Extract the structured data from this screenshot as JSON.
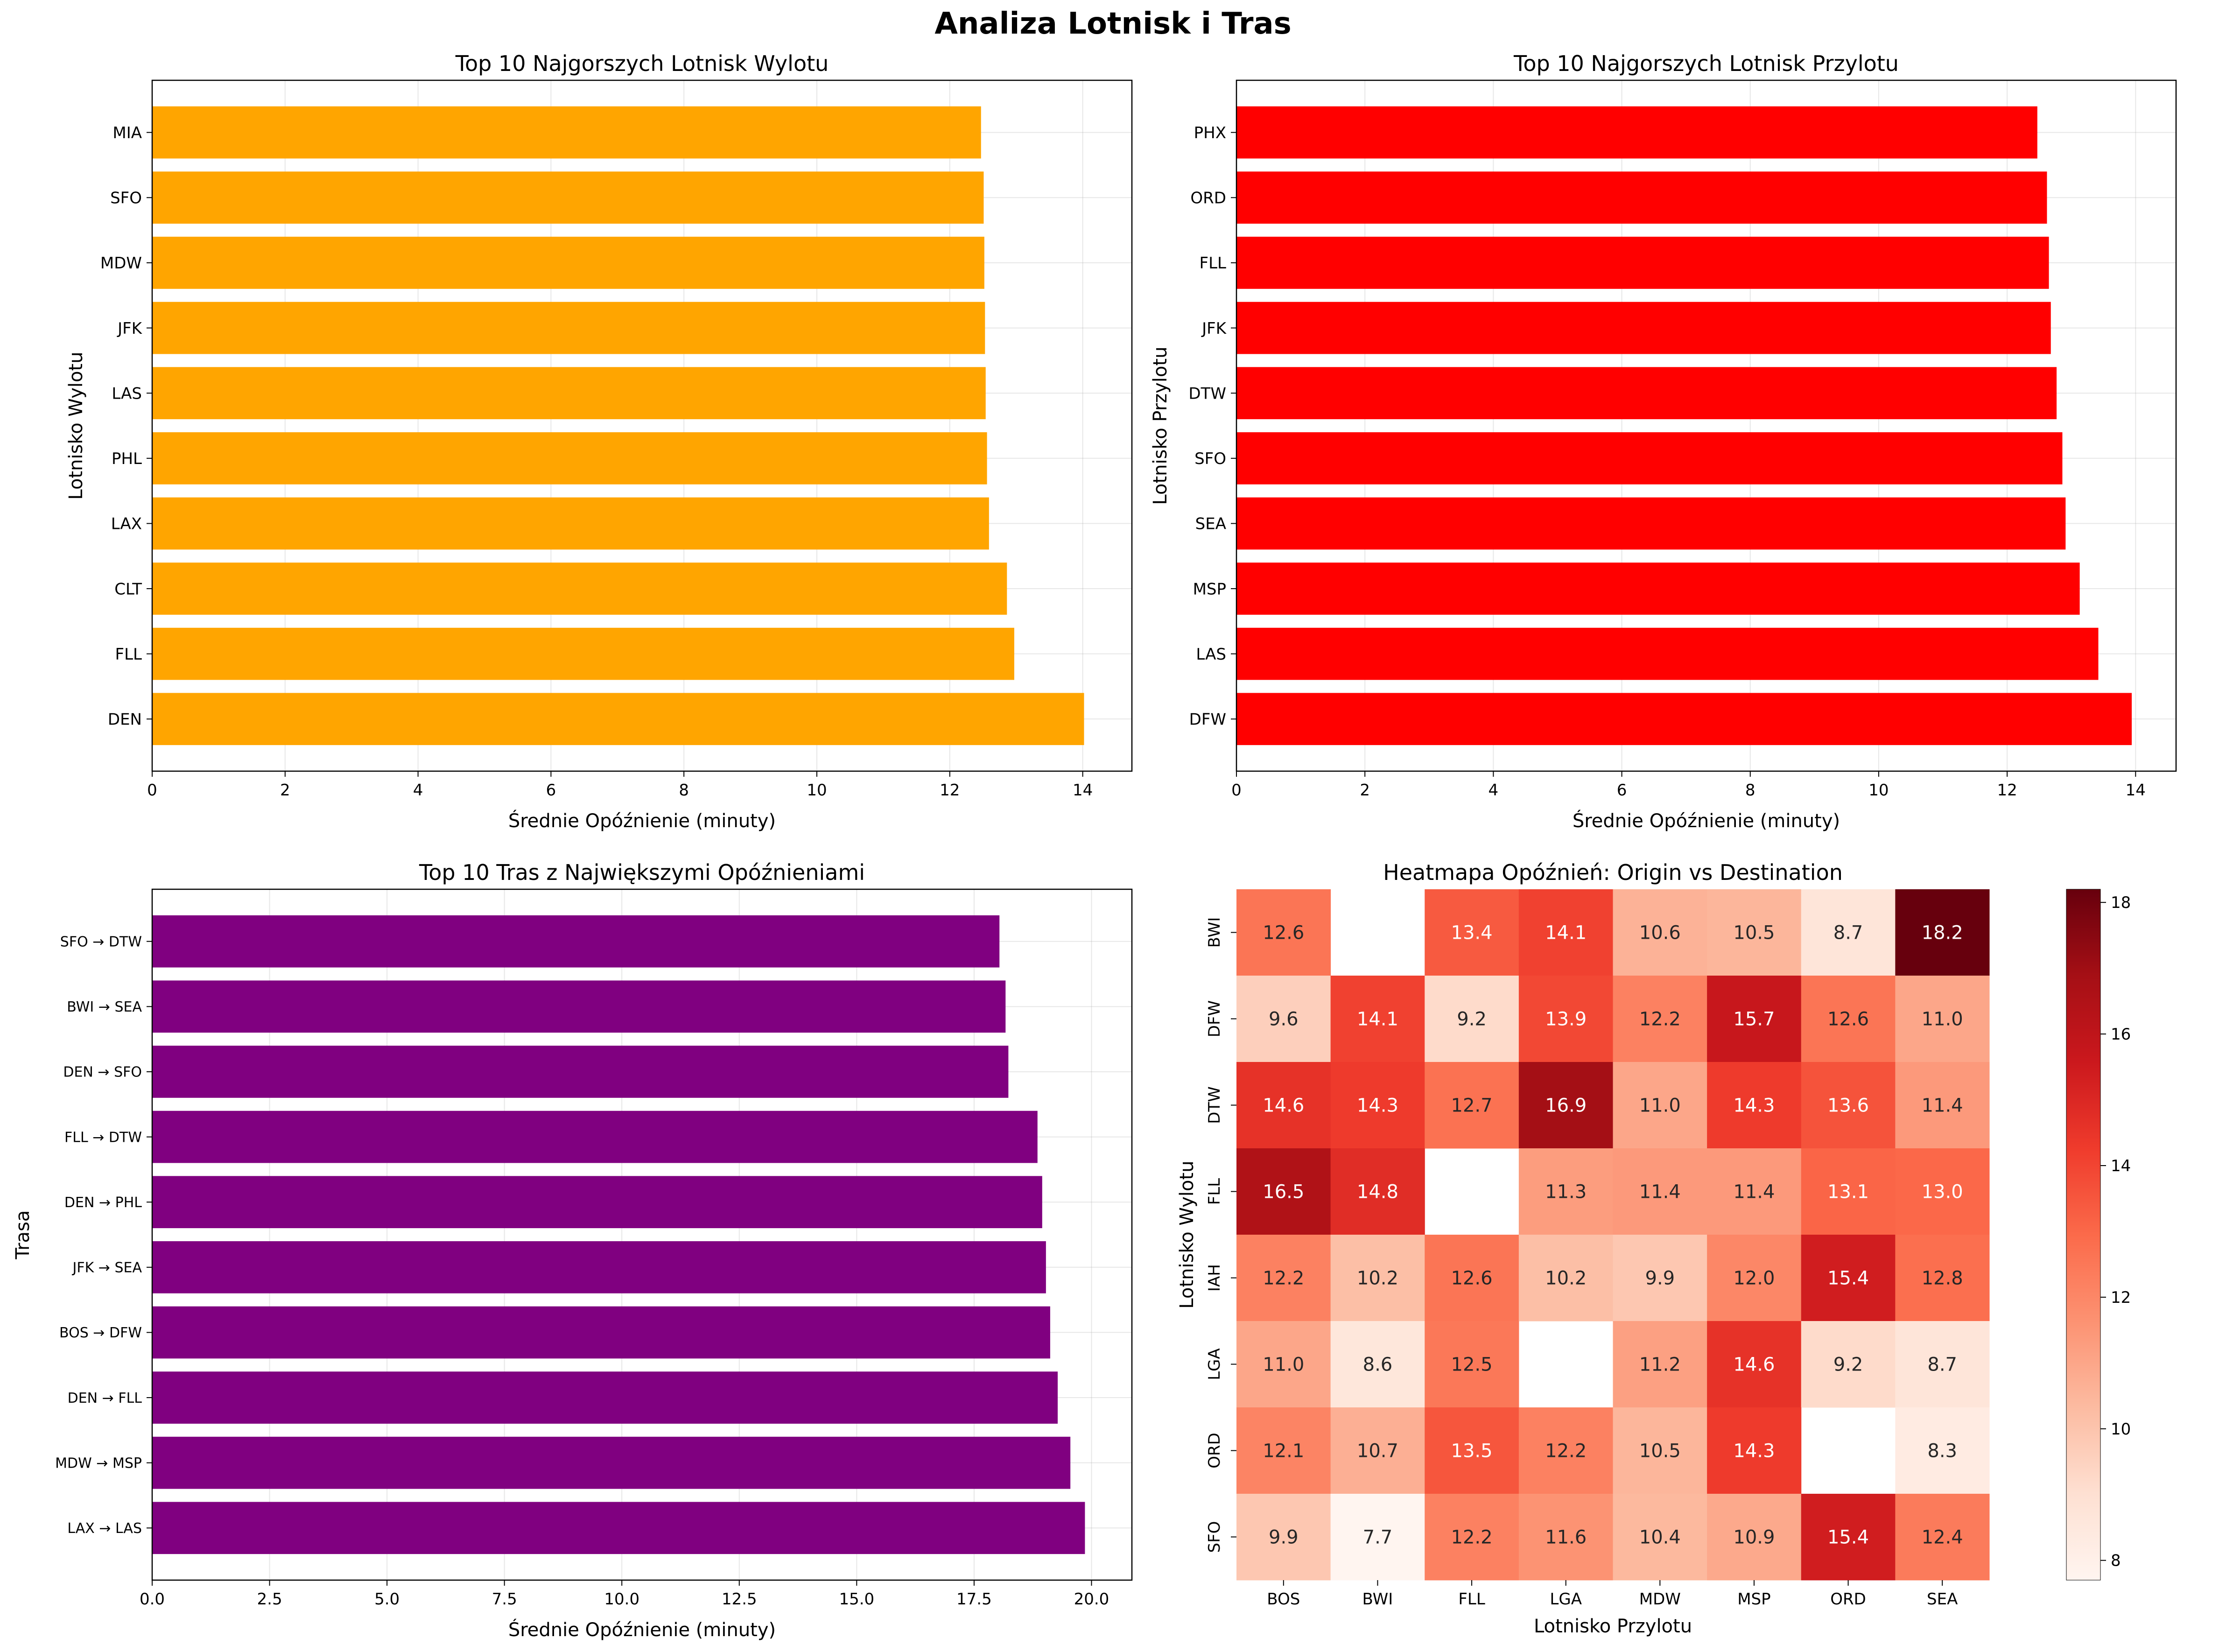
{
  "suptitle": "Analiza Lotnisk i Tras",
  "chart_data": [
    {
      "type": "bar",
      "orientation": "horizontal",
      "title": "Top 10 Najgorszych Lotnisk Wylotu",
      "xlabel": "Średnie Opóźnienie (minuty)",
      "ylabel": "Lotnisko Wylotu",
      "color": "#FFA500",
      "xlim": [
        0,
        14.74
      ],
      "xticks": [
        0,
        2,
        4,
        6,
        8,
        10,
        12,
        14
      ],
      "xtick_labels": [
        "0",
        "2",
        "4",
        "6",
        "8",
        "10",
        "12",
        "14"
      ],
      "grid": true,
      "categories": [
        "DEN",
        "FLL",
        "CLT",
        "LAX",
        "PHL",
        "LAS",
        "JFK",
        "MDW",
        "SFO",
        "MIA"
      ],
      "values": [
        14.02,
        12.97,
        12.86,
        12.59,
        12.56,
        12.54,
        12.53,
        12.52,
        12.51,
        12.47
      ]
    },
    {
      "type": "bar",
      "orientation": "horizontal",
      "title": "Top 10 Najgorszych Lotnisk Przylotu",
      "xlabel": "Średnie Opóźnienie (minuty)",
      "ylabel": "Lotnisko Przylotu",
      "color": "#FF0000",
      "xlim": [
        0,
        14.63
      ],
      "xticks": [
        0,
        2,
        4,
        6,
        8,
        10,
        12,
        14
      ],
      "xtick_labels": [
        "0",
        "2",
        "4",
        "6",
        "8",
        "10",
        "12",
        "14"
      ],
      "grid": true,
      "categories": [
        "DFW",
        "LAS",
        "MSP",
        "SEA",
        "SFO",
        "DTW",
        "JFK",
        "FLL",
        "ORD",
        "PHX"
      ],
      "values": [
        13.94,
        13.42,
        13.13,
        12.91,
        12.86,
        12.77,
        12.68,
        12.65,
        12.62,
        12.47
      ]
    },
    {
      "type": "bar",
      "orientation": "horizontal",
      "title": "Top 10 Tras z Największymi Opóźnieniami",
      "xlabel": "Średnie Opóźnienie (minuty)",
      "ylabel": "Trasa",
      "color": "#800080",
      "xlim": [
        0,
        20.86
      ],
      "xticks": [
        0,
        2.5,
        5,
        7.5,
        10,
        12.5,
        15,
        17.5,
        20
      ],
      "xtick_labels": [
        "0.0",
        "2.5",
        "5.0",
        "7.5",
        "10.0",
        "12.5",
        "15.0",
        "17.5",
        "20.0"
      ],
      "grid": true,
      "categories": [
        "LAX → LAS",
        "MDW → MSP",
        "DEN → FLL",
        "BOS → DFW",
        "JFK → SEA",
        "DEN → PHL",
        "FLL → DTW",
        "DEN → SFO",
        "BWI → SEA",
        "SFO → DTW"
      ],
      "values": [
        19.86,
        19.55,
        19.28,
        19.12,
        19.03,
        18.95,
        18.85,
        18.23,
        18.17,
        18.04
      ]
    },
    {
      "type": "heatmap",
      "title": "Heatmapa Opóźnień: Origin vs Destination",
      "xlabel": "Lotnisko Przylotu",
      "ylabel": "Lotnisko Wylotu",
      "cmap": "Reds",
      "vmin": 7.7,
      "vmax": 18.2,
      "colorbar_ticks": [
        8,
        10,
        12,
        14,
        16,
        18
      ],
      "x_categories": [
        "BOS",
        "BWI",
        "FLL",
        "LGA",
        "MDW",
        "MSP",
        "ORD",
        "SEA"
      ],
      "y_categories": [
        "BWI",
        "DFW",
        "DTW",
        "FLL",
        "IAH",
        "LGA",
        "ORD",
        "SFO"
      ],
      "values": [
        [
          12.6,
          null,
          13.4,
          14.1,
          10.6,
          10.5,
          8.7,
          18.2
        ],
        [
          9.6,
          14.1,
          9.2,
          13.9,
          12.2,
          15.7,
          12.6,
          11.0
        ],
        [
          14.6,
          14.3,
          12.7,
          16.9,
          11.0,
          14.3,
          13.6,
          11.4
        ],
        [
          16.5,
          14.8,
          null,
          11.3,
          11.4,
          11.4,
          13.1,
          13.0
        ],
        [
          12.2,
          10.2,
          12.6,
          10.2,
          9.9,
          12.0,
          15.4,
          12.8
        ],
        [
          11.0,
          8.6,
          12.5,
          null,
          11.2,
          14.6,
          9.2,
          8.7
        ],
        [
          12.1,
          10.7,
          13.5,
          12.2,
          10.5,
          14.3,
          null,
          8.3
        ],
        [
          9.9,
          7.7,
          12.2,
          11.6,
          10.4,
          10.9,
          15.4,
          12.4
        ]
      ]
    }
  ]
}
